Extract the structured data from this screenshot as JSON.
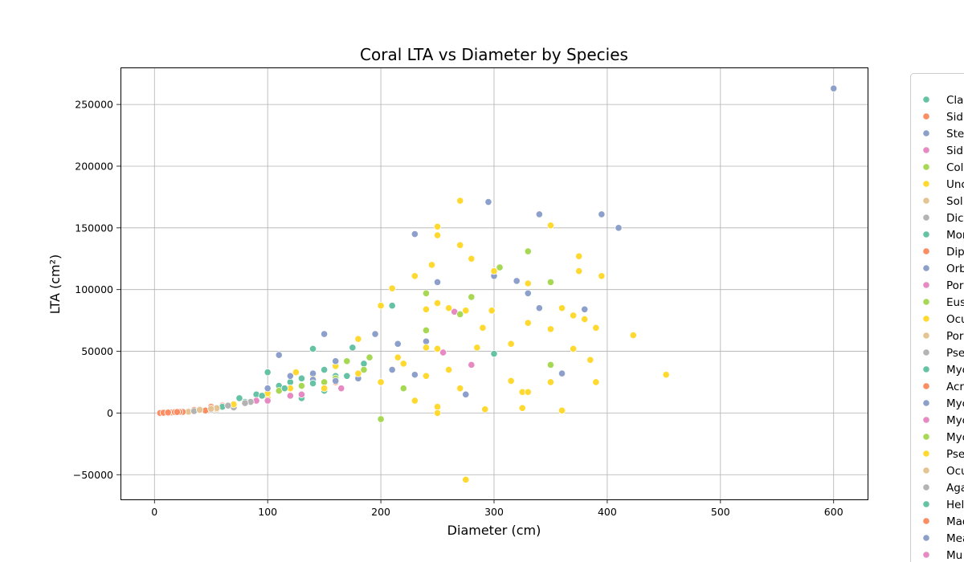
{
  "chart_data": {
    "type": "scatter",
    "title": "Coral LTA vs Diameter by Species",
    "xlabel": "Diameter (cm)",
    "ylabel": "LTA (cm²)",
    "xlim": [
      -30,
      630
    ],
    "ylim": [
      -70000,
      280000
    ],
    "xticks": [
      "0",
      "100",
      "200",
      "300",
      "400",
      "500",
      "600"
    ],
    "yticks": [
      "−50000",
      "0",
      "50000",
      "100000",
      "150000",
      "200000",
      "250000"
    ],
    "grid": true,
    "legend_position": "right (outside plot, clipped)",
    "series": [
      {
        "name": "Cla",
        "color": "#66c2a5",
        "points": [
          [
            100,
            33000
          ],
          [
            120,
            25000
          ],
          [
            140,
            52000
          ],
          [
            160,
            30000
          ],
          [
            175,
            53000
          ],
          [
            210,
            87000
          ],
          [
            300,
            48000
          ],
          [
            130,
            12000
          ],
          [
            150,
            18000
          ],
          [
            185,
            40000
          ]
        ]
      },
      {
        "name": "Sid",
        "color": "#fc8d62",
        "points": [
          [
            5,
            0
          ],
          [
            10,
            300
          ],
          [
            15,
            600
          ],
          [
            20,
            800
          ],
          [
            25,
            1200
          ],
          [
            30,
            1500
          ],
          [
            35,
            2500
          ],
          [
            40,
            3000
          ],
          [
            50,
            5000
          ],
          [
            60,
            6000
          ],
          [
            160,
            25000
          ]
        ]
      },
      {
        "name": "Ste",
        "color": "#8da0cb",
        "points": [
          [
            150,
            64000
          ],
          [
            195,
            64000
          ],
          [
            230,
            145000
          ],
          [
            295,
            171000
          ],
          [
            340,
            161000
          ],
          [
            395,
            161000
          ],
          [
            410,
            150000
          ],
          [
            600,
            263000
          ],
          [
            250,
            106000
          ],
          [
            320,
            107000
          ],
          [
            330,
            97000
          ],
          [
            340,
            85000
          ],
          [
            380,
            84000
          ],
          [
            360,
            32000
          ],
          [
            275,
            15000
          ],
          [
            215,
            56000
          ],
          [
            240,
            58000
          ],
          [
            110,
            47000
          ],
          [
            300,
            111000
          ]
        ]
      },
      {
        "name": "Sid",
        "color": "#e78ac3",
        "points": [
          [
            265,
            82000
          ],
          [
            280,
            39000
          ],
          [
            255,
            49000
          ],
          [
            165,
            20000
          ]
        ]
      },
      {
        "name": "Col",
        "color": "#a6d854",
        "points": [
          [
            305,
            118000
          ],
          [
            330,
            131000
          ],
          [
            350,
            106000
          ],
          [
            280,
            94000
          ],
          [
            240,
            97000
          ],
          [
            240,
            67000
          ],
          [
            270,
            80000
          ],
          [
            200,
            -5000
          ],
          [
            350,
            39000
          ],
          [
            170,
            42000
          ],
          [
            185,
            35000
          ],
          [
            220,
            20000
          ]
        ]
      },
      {
        "name": "Unc",
        "color": "#ffd92f",
        "points": [
          [
            270,
            172000
          ],
          [
            250,
            151000
          ],
          [
            250,
            144000
          ],
          [
            350,
            152000
          ],
          [
            270,
            136000
          ],
          [
            280,
            125000
          ],
          [
            245,
            120000
          ],
          [
            300,
            115000
          ],
          [
            375,
            127000
          ],
          [
            375,
            115000
          ],
          [
            395,
            111000
          ],
          [
            370,
            79000
          ],
          [
            330,
            105000
          ],
          [
            230,
            111000
          ],
          [
            200,
            87000
          ],
          [
            210,
            101000
          ],
          [
            240,
            84000
          ],
          [
            250,
            89000
          ],
          [
            260,
            85000
          ],
          [
            275,
            83000
          ],
          [
            298,
            83000
          ],
          [
            330,
            73000
          ],
          [
            350,
            68000
          ],
          [
            360,
            85000
          ],
          [
            390,
            69000
          ],
          [
            380,
            76000
          ],
          [
            290,
            69000
          ],
          [
            315,
            56000
          ],
          [
            240,
            53000
          ],
          [
            250,
            52000
          ],
          [
            285,
            53000
          ],
          [
            315,
            26000
          ],
          [
            325,
            17000
          ],
          [
            330,
            17000
          ],
          [
            423,
            63000
          ],
          [
            452,
            31000
          ],
          [
            390,
            25000
          ],
          [
            360,
            2000
          ],
          [
            325,
            4000
          ],
          [
            292,
            3000
          ],
          [
            275,
            -54000
          ],
          [
            215,
            45000
          ],
          [
            220,
            40000
          ],
          [
            240,
            30000
          ],
          [
            200,
            25000
          ],
          [
            180,
            60000
          ],
          [
            160,
            38000
          ],
          [
            140,
            30000
          ],
          [
            120,
            20000
          ],
          [
            100,
            12000
          ],
          [
            80,
            8000
          ],
          [
            60,
            5000
          ],
          [
            40,
            2000
          ],
          [
            260,
            35000
          ],
          [
            270,
            20000
          ],
          [
            230,
            10000
          ],
          [
            250,
            5000
          ],
          [
            250,
            0
          ],
          [
            350,
            25000
          ],
          [
            370,
            52000
          ],
          [
            385,
            43000
          ]
        ]
      },
      {
        "name": "Sol",
        "color": "#e5c494",
        "points": [
          [
            30,
            1000
          ],
          [
            45,
            2000
          ],
          [
            55,
            3000
          ]
        ]
      },
      {
        "name": "Dic",
        "color": "#b3b3b3",
        "points": [
          [
            35,
            1500
          ],
          [
            50,
            2500
          ],
          [
            70,
            4500
          ]
        ]
      },
      {
        "name": "Mor",
        "color": "#66c2a5",
        "points": [
          [
            60,
            5000
          ],
          [
            80,
            9000
          ],
          [
            90,
            15000
          ],
          [
            110,
            22000
          ],
          [
            130,
            28000
          ],
          [
            150,
            35000
          ],
          [
            170,
            30000
          ]
        ]
      },
      {
        "name": "Dip",
        "color": "#fc8d62",
        "points": [
          [
            15,
            500
          ],
          [
            25,
            900
          ],
          [
            45,
            2000
          ]
        ]
      },
      {
        "name": "Orb",
        "color": "#8da0cb",
        "points": [
          [
            120,
            30000
          ],
          [
            140,
            32000
          ],
          [
            160,
            42000
          ],
          [
            180,
            28000
          ],
          [
            210,
            35000
          ],
          [
            230,
            31000
          ]
        ]
      },
      {
        "name": "Por",
        "color": "#e78ac3",
        "points": [
          [
            90,
            10000
          ],
          [
            130,
            15000
          ]
        ]
      },
      {
        "name": "Eus",
        "color": "#a6d854",
        "points": [
          [
            110,
            18000
          ],
          [
            150,
            25000
          ],
          [
            190,
            45000
          ]
        ]
      },
      {
        "name": "Ocu",
        "color": "#ffd92f",
        "points": [
          [
            70,
            7000
          ],
          [
            100,
            16000
          ],
          [
            125,
            33000
          ]
        ]
      },
      {
        "name": "Por",
        "color": "#e5c494",
        "points": [
          [
            40,
            2500
          ],
          [
            55,
            4000
          ]
        ]
      },
      {
        "name": "Pse",
        "color": "#b3b3b3",
        "points": [
          [
            65,
            6000
          ],
          [
            85,
            9000
          ]
        ]
      },
      {
        "name": "Myc",
        "color": "#66c2a5",
        "points": [
          [
            75,
            12000
          ],
          [
            95,
            14000
          ],
          [
            115,
            20000
          ]
        ]
      },
      {
        "name": "Acr",
        "color": "#fc8d62",
        "points": [
          [
            8,
            200
          ],
          [
            12,
            400
          ],
          [
            18,
            700
          ],
          [
            22,
            900
          ]
        ]
      },
      {
        "name": "Myc",
        "color": "#8da0cb",
        "points": [
          [
            100,
            20000
          ],
          [
            140,
            27000
          ]
        ]
      },
      {
        "name": "Myc",
        "color": "#e78ac3",
        "points": [
          [
            120,
            14000
          ]
        ]
      },
      {
        "name": "Myc",
        "color": "#a6d854",
        "points": [
          [
            130,
            22000
          ],
          [
            160,
            28000
          ]
        ]
      },
      {
        "name": "Pse",
        "color": "#ffd92f",
        "points": [
          [
            150,
            20000
          ],
          [
            180,
            32000
          ]
        ]
      },
      {
        "name": "Ocu",
        "color": "#e5c494",
        "points": [
          [
            50,
            3500
          ]
        ]
      },
      {
        "name": "Aga",
        "color": "#b3b3b3",
        "points": [
          [
            80,
            8000
          ]
        ]
      },
      {
        "name": "Hel",
        "color": "#66c2a5",
        "points": [
          [
            140,
            24000
          ]
        ]
      },
      {
        "name": "Mad",
        "color": "#fc8d62",
        "points": [
          [
            20,
            800
          ]
        ]
      },
      {
        "name": "Mea",
        "color": "#8da0cb",
        "points": [
          [
            160,
            26000
          ]
        ]
      },
      {
        "name": "Mu",
        "color": "#e78ac3",
        "points": [
          [
            100,
            10000
          ]
        ]
      }
    ]
  }
}
